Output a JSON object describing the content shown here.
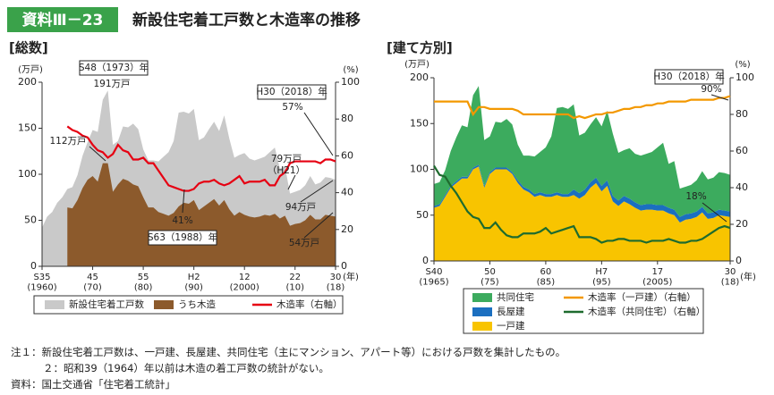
{
  "header": {
    "label": "資料Ⅲ－23",
    "title": "新設住宅着工戸数と木造率の推移"
  },
  "notes": [
    "注１：新設住宅着工戸数は、一戸建、長屋建、共同住宅（主にマンション、アパート等）における戸数を集計したもの。",
    "２：昭和39（1964）年以前は木造の着工戸数の統計がない。",
    "資料：国土交通省「住宅着工統計」"
  ],
  "chart_data": [
    {
      "type": "area",
      "subtitle": "[総数]",
      "y_unit": "(万戸)",
      "y2_unit": "(%)",
      "x_unit": "(年)",
      "x": [
        1960,
        1961,
        1962,
        1963,
        1964,
        1965,
        1966,
        1967,
        1968,
        1969,
        1970,
        1971,
        1972,
        1973,
        1974,
        1975,
        1976,
        1977,
        1978,
        1979,
        1980,
        1981,
        1982,
        1983,
        1984,
        1985,
        1986,
        1987,
        1988,
        1989,
        1990,
        1991,
        1992,
        1993,
        1994,
        1995,
        1996,
        1997,
        1998,
        1999,
        2000,
        2001,
        2002,
        2003,
        2004,
        2005,
        2006,
        2007,
        2008,
        2009,
        2010,
        2011,
        2012,
        2013,
        2014,
        2015,
        2016,
        2017,
        2018
      ],
      "xlim": [
        1960,
        2018
      ],
      "xticks": [
        {
          "value": 1960,
          "label": "S35\n(1960)"
        },
        {
          "value": 1970,
          "label": "45\n(70)"
        },
        {
          "value": 1980,
          "label": "55\n(80)"
        },
        {
          "value": 1990,
          "label": "H2\n(90)"
        },
        {
          "value": 2000,
          "label": "12\n(2000)"
        },
        {
          "value": 2010,
          "label": "22\n(10)"
        },
        {
          "value": 2018,
          "label": "30\n(18)"
        }
      ],
      "ylim": [
        0,
        200
      ],
      "yticks": [
        0,
        50,
        100,
        150,
        200
      ],
      "y2lim": [
        0,
        100
      ],
      "y2ticks": [
        0,
        20,
        40,
        60,
        80,
        100
      ],
      "series": [
        {
          "name": "新設住宅着工戸数",
          "type": "area",
          "color": "#c9c9c9",
          "values": [
            42,
            54,
            59,
            69,
            75,
            84,
            86,
            99,
            120,
            135,
            148,
            146,
            181,
            191,
            132,
            136,
            152,
            151,
            155,
            149,
            127,
            115,
            115,
            114,
            119,
            124,
            136,
            167,
            168,
            166,
            171,
            137,
            140,
            149,
            157,
            147,
            164,
            139,
            118,
            121,
            123,
            117,
            115,
            117,
            119,
            124,
            129,
            106,
            109,
            79,
            81,
            83,
            88,
            98,
            89,
            91,
            97,
            96,
            94
          ]
        },
        {
          "name": "うち木造",
          "type": "area",
          "color": "#8c5a2c",
          "values": [
            null,
            null,
            null,
            null,
            null,
            64,
            63,
            72,
            85,
            94,
            98,
            92,
            112,
            112,
            81,
            89,
            95,
            93,
            89,
            87,
            75,
            64,
            64,
            59,
            57,
            55,
            58,
            65,
            69,
            68,
            72,
            61,
            65,
            69,
            73,
            66,
            72,
            62,
            55,
            59,
            56,
            54,
            53,
            54,
            56,
            55,
            57,
            52,
            55,
            44,
            46,
            47,
            50,
            56,
            51,
            51,
            56,
            55,
            54
          ]
        },
        {
          "name": "木造率（右軸）",
          "type": "line",
          "axis": "y2",
          "color": "#e60012",
          "values": [
            null,
            null,
            null,
            null,
            null,
            76,
            74,
            73,
            71,
            70,
            66,
            63,
            62,
            59,
            61,
            66,
            63,
            62,
            58,
            58,
            59,
            56,
            56,
            52,
            48,
            44,
            43,
            42,
            41,
            41,
            42,
            45,
            46,
            46,
            47,
            45,
            44,
            45,
            47,
            49,
            45,
            46,
            46,
            46,
            47,
            44,
            44,
            49,
            51,
            56,
            57,
            57,
            57,
            57,
            57,
            56,
            58,
            58,
            57
          ]
        }
      ],
      "annotations": [
        "S48（1973）年",
        "191万戸",
        "112万戸",
        "41%",
        "S63（1988）年",
        "79万戸",
        "（H21）",
        "94万戸",
        "54万戸",
        "H30（2018）年",
        "57%"
      ]
    },
    {
      "type": "area",
      "subtitle": "[建て方別]",
      "y_unit": "(万戸)",
      "y2_unit": "(%)",
      "x_unit": "(年)",
      "stacked": true,
      "x": [
        1965,
        1966,
        1967,
        1968,
        1969,
        1970,
        1971,
        1972,
        1973,
        1974,
        1975,
        1976,
        1977,
        1978,
        1979,
        1980,
        1981,
        1982,
        1983,
        1984,
        1985,
        1986,
        1987,
        1988,
        1989,
        1990,
        1991,
        1992,
        1993,
        1994,
        1995,
        1996,
        1997,
        1998,
        1999,
        2000,
        2001,
        2002,
        2003,
        2004,
        2005,
        2006,
        2007,
        2008,
        2009,
        2010,
        2011,
        2012,
        2013,
        2014,
        2015,
        2016,
        2017,
        2018
      ],
      "xlim": [
        1965,
        2018
      ],
      "xticks": [
        {
          "value": 1965,
          "label": "S40\n(1965)"
        },
        {
          "value": 1975,
          "label": "50\n(75)"
        },
        {
          "value": 1985,
          "label": "60\n(85)"
        },
        {
          "value": 1995,
          "label": "H7\n(95)"
        },
        {
          "value": 2005,
          "label": "17\n(2005)"
        },
        {
          "value": 2018,
          "label": "30\n(18)"
        }
      ],
      "ylim": [
        0,
        200
      ],
      "yticks": [
        0,
        50,
        100,
        150,
        200
      ],
      "y2lim": [
        0,
        100
      ],
      "y2ticks": [
        0,
        20,
        40,
        60,
        80,
        100
      ],
      "series": [
        {
          "name": "共同住宅",
          "type": "area",
          "color": "#3cab5e",
          "values": [
            24,
            24,
            27,
            38,
            48,
            56,
            54,
            79,
            86,
            50,
            39,
            50,
            49,
            53,
            52,
            39,
            34,
            37,
            41,
            44,
            51,
            63,
            92,
            95,
            93,
            93,
            63,
            62,
            63,
            66,
            65,
            76,
            68,
            52,
            50,
            55,
            53,
            54,
            55,
            57,
            63,
            68,
            48,
            53,
            31,
            30,
            31,
            34,
            39,
            37,
            38,
            41,
            41,
            40
          ]
        },
        {
          "name": "長屋建",
          "type": "area",
          "color": "#1b6fc0",
          "values": [
            2,
            2,
            2,
            2,
            2,
            2,
            2,
            2,
            2,
            2,
            2,
            2,
            2,
            2,
            2,
            3,
            3,
            3,
            3,
            3,
            3,
            3,
            3,
            3,
            3,
            6,
            6,
            6,
            6,
            6,
            6,
            6,
            6,
            6,
            6,
            6,
            6,
            6,
            6,
            6,
            6,
            6,
            6,
            6,
            6,
            6,
            6,
            6,
            6,
            6,
            6,
            6,
            6,
            6
          ]
        },
        {
          "name": "一戸建",
          "type": "area",
          "color": "#f8c400",
          "values": [
            58,
            60,
            70,
            80,
            85,
            90,
            90,
            100,
            103,
            80,
            95,
            100,
            100,
            100,
            95,
            85,
            78,
            75,
            70,
            72,
            70,
            70,
            72,
            70,
            70,
            72,
            68,
            72,
            80,
            85,
            76,
            82,
            65,
            60,
            65,
            62,
            58,
            55,
            56,
            56,
            55,
            55,
            52,
            50,
            42,
            45,
            46,
            48,
            53,
            46,
            47,
            50,
            49,
            48
          ]
        },
        {
          "name": "木造率（一戸建）（右軸）",
          "type": "line",
          "axis": "y2",
          "color": "#f39800",
          "values": [
            87,
            87,
            87,
            87,
            87,
            87,
            87,
            80,
            84,
            84,
            83,
            83,
            83,
            83,
            83,
            82,
            80,
            80,
            80,
            80,
            80,
            80,
            80,
            80,
            80,
            78,
            79,
            78,
            79,
            80,
            80,
            81,
            81,
            82,
            83,
            83,
            84,
            84,
            85,
            85,
            86,
            86,
            87,
            87,
            87,
            87,
            88,
            88,
            88,
            88,
            88,
            89,
            89,
            90
          ]
        },
        {
          "name": "木造率（共同住宅）（右軸）",
          "type": "line",
          "axis": "y2",
          "color": "#1e6b2e",
          "values": [
            52,
            47,
            46,
            41,
            37,
            32,
            27,
            24,
            23,
            18,
            18,
            21,
            17,
            14,
            13,
            13,
            15,
            15,
            15,
            16,
            18,
            15,
            16,
            17,
            18,
            19,
            13,
            13,
            13,
            12,
            10,
            11,
            11,
            12,
            12,
            11,
            11,
            11,
            10,
            11,
            11,
            11,
            12,
            11,
            10,
            10,
            11,
            11,
            12,
            14,
            16,
            18,
            19,
            18
          ]
        }
      ],
      "annotations": [
        "H30（2018）年",
        "90%",
        "18%"
      ]
    }
  ]
}
